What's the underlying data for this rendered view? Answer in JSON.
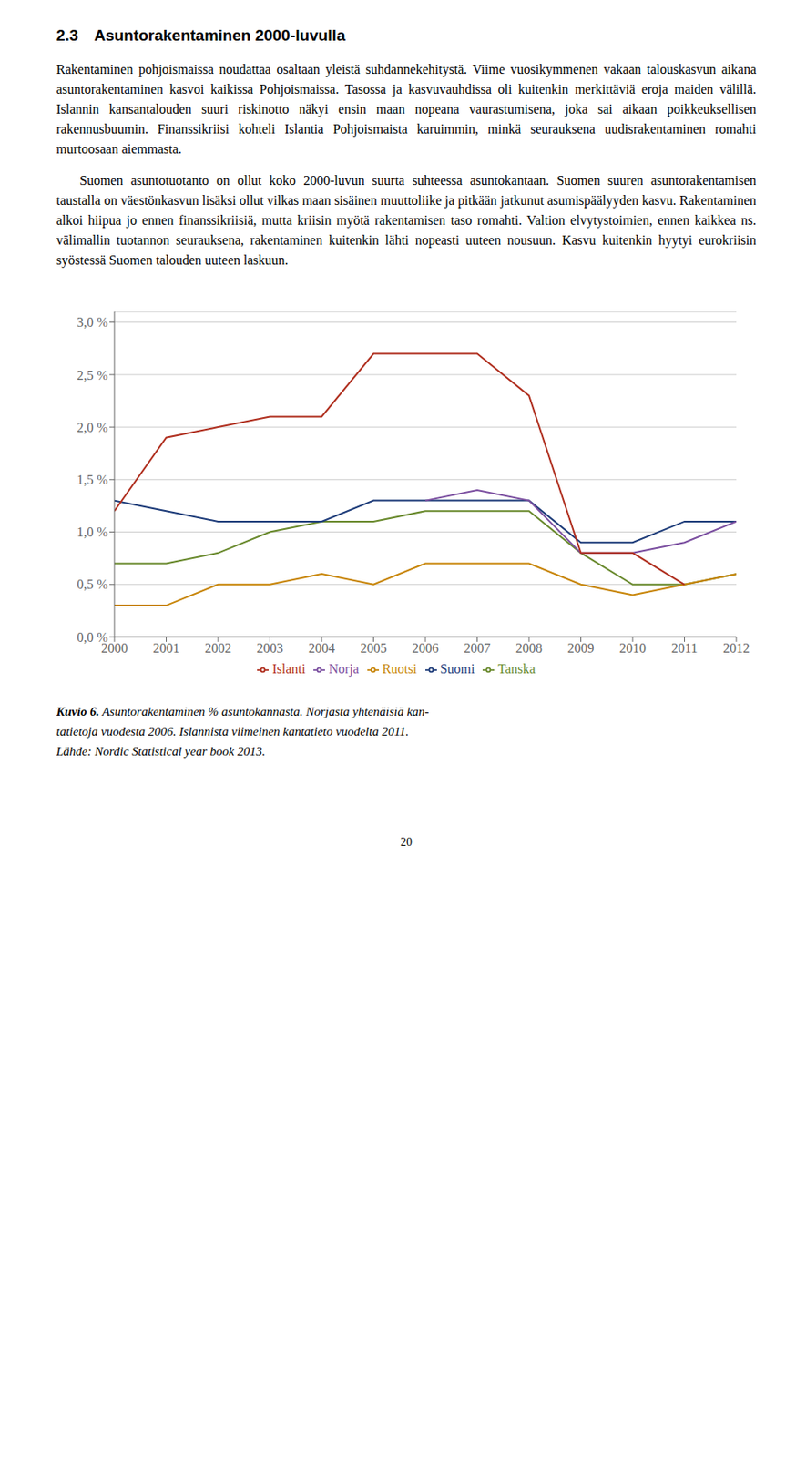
{
  "chart_data": {
    "type": "line",
    "title": "2.3 Asuntorakentaminen 2000-luvulla",
    "annotations": [
      "Rakentaminen pohjoismaissa noudattaa osaltaan yleistä suhdannekehitystä. Viime vuosikymmenen vakaan talouskasvun aikana asuntorakentaminen kasvoi kaikissa Pohjoismaissa. Tasossa ja kasvuvauhdissa oli kuitenkin merkittäviä eroja maiden välillä. Islannin kansantalouden suuri riskinotto näkyi ensin maan nopeana vaurastumisena, joka sai aikaan poikkeuksellisen rakennusbuumin. Finanssikriisi kohteli Islantia Pohjoismaista karuimmin, minkä seurauksena uudisrakentaminen romahti murtoosaan aiemmasta.",
      "Suomen asuntotuotanto on ollut koko 2000-luvun suurta suhteessa asuntokantaan. Suomen suuren asuntorakentamisen taustalla on väestönkasvun lisäksi ollut vilkas maan sisäinen muuttoliike ja pitkään jatkunut asumispäälyyden kasvu. Rakentaminen alkoi hiipua jo ennen finanssikriisiä, mutta kriisin myötä rakentamisen taso romahti. Valtion elvytystoimien, ennen kaikkea ns. välimallin tuotannon seurauksena, rakentaminen kuitenkin lähti nopeasti uuteen nousuun. Kasvu kuitenkin hyytyi eurokriisin syöstessä Suomen talouden uuteen laskuun.",
      "Kuvio 6.",
      "Asuntorakentaminen % asuntokannasta. Norjasta yhtenäisiä kan-",
      "tatietoja vuodesta 2006. Islannista viimeinen kantatieto vuodelta 2011.",
      "Lähde: Nordic Statistical year book 2013.",
      "20"
    ],
    "x": [
      2000,
      2001,
      2002,
      2003,
      2004,
      2005,
      2006,
      2007,
      2008,
      2009,
      2010,
      2011,
      2012
    ],
    "series": [
      {
        "name": "Tanska",
        "color": "#6a8a2e",
        "values": [
          0.007,
          0.007,
          0.008,
          0.01,
          0.011,
          0.011,
          0.012,
          0.012,
          0.012,
          0.008,
          0.005,
          0.005,
          0.006
        ]
      },
      {
        "name": "Suomi",
        "color": "#1f3d7a",
        "values": [
          0.013,
          0.012,
          0.011,
          0.011,
          0.011,
          0.013,
          0.013,
          0.013,
          0.013,
          0.009,
          0.009,
          0.011,
          0.011
        ]
      },
      {
        "name": "Ruotsi",
        "color": "#c8860a",
        "values": [
          0.003,
          0.003,
          0.005,
          0.005,
          0.006,
          0.005,
          0.007,
          0.007,
          0.007,
          0.005,
          0.004,
          0.005,
          0.006
        ]
      },
      {
        "name": "Norja",
        "color": "#7b4fa0",
        "values": [
          null,
          null,
          null,
          null,
          null,
          null,
          0.013,
          0.014,
          0.013,
          0.008,
          0.008,
          0.009,
          0.011
        ]
      },
      {
        "name": "Islanti",
        "color": "#b03020",
        "values": [
          0.012,
          0.019,
          0.02,
          0.021,
          0.021,
          0.027,
          0.027,
          0.027,
          0.023,
          0.008,
          0.008,
          0.005,
          null
        ]
      }
    ],
    "xlim": [
      2000,
      2012
    ],
    "xticks": [
      2000,
      2001,
      2002,
      2003,
      2004,
      2005,
      2006,
      2007,
      2008,
      2009,
      2010,
      2011,
      2012
    ],
    "ylim": [
      0.0,
      0.031
    ],
    "yticks": [
      {
        "value": 0.0,
        "label": "0,0 %"
      },
      {
        "value": 0.005,
        "label": "0,5 %"
      },
      {
        "value": 0.01,
        "label": "1,0 %"
      },
      {
        "value": 0.015,
        "label": "1,5 %"
      },
      {
        "value": 0.02,
        "label": "2,0 %"
      },
      {
        "value": 0.025,
        "label": "2,5 %"
      },
      {
        "value": 0.03,
        "label": "3,0 %"
      }
    ],
    "grid": true,
    "legend": "bottom"
  }
}
